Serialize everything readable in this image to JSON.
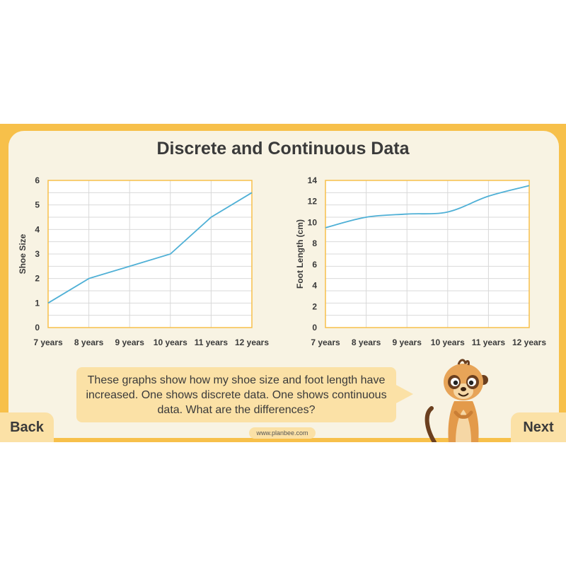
{
  "title": "Discrete and Continuous Data",
  "speech": "These graphs show how my shoe size and foot length have increased. One shows discrete data. One shows continuous data. What are the differences?",
  "nav": {
    "back_label": "Back",
    "next_label": "Next"
  },
  "footer": {
    "url": "www.planbee.com"
  },
  "colors": {
    "frame": "#f7c04a",
    "panel": "#f8f3e3",
    "bubble": "#fbe1a6",
    "line": "#4fb0d6",
    "grid_border": "#f7c04a"
  },
  "icons": {
    "character": "meerkat-icon"
  },
  "chart_data": [
    {
      "type": "line",
      "categories": [
        "7 years",
        "8 years",
        "9 years",
        "10 years",
        "11 years",
        "12 years"
      ],
      "series": [
        {
          "values": [
            1,
            2,
            2.5,
            3,
            4.5,
            5.5
          ]
        }
      ],
      "ylabel": "Shoe Size",
      "xlabel": "",
      "ylim": [
        0,
        6
      ],
      "yticks": [
        "0",
        "1",
        "2",
        "3",
        "4",
        "5",
        "6"
      ],
      "grid": true,
      "smooth": false
    },
    {
      "type": "line",
      "categories": [
        "7 years",
        "8 years",
        "9 years",
        "10 years",
        "11 years",
        "12 years"
      ],
      "series": [
        {
          "values": [
            9.5,
            10.5,
            10.8,
            11,
            12.5,
            13.5
          ]
        }
      ],
      "ylabel": "Foot Length (cm)",
      "xlabel": "",
      "ylim": [
        0,
        14
      ],
      "yticks": [
        "0",
        "2",
        "4",
        "6",
        "8",
        "10",
        "12",
        "14"
      ],
      "grid": true,
      "smooth": true
    }
  ]
}
